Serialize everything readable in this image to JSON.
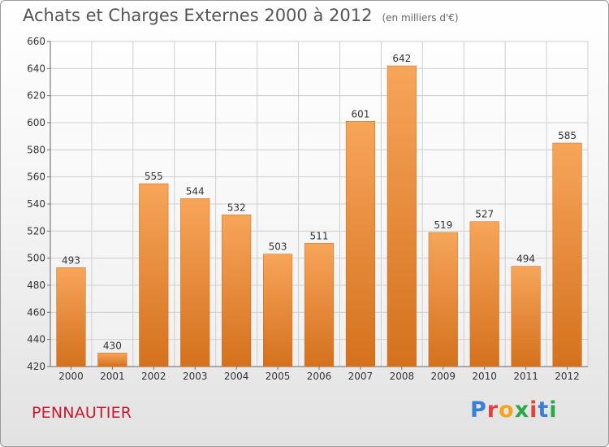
{
  "chart_data": {
    "type": "bar",
    "title": "Achats et Charges Externes 2000 à 2012",
    "unit": "(en milliers d'€)",
    "categories": [
      "2000",
      "2001",
      "2002",
      "2003",
      "2004",
      "2005",
      "2006",
      "2007",
      "2008",
      "2009",
      "2010",
      "2011",
      "2012"
    ],
    "values": [
      493,
      430,
      555,
      544,
      532,
      503,
      511,
      601,
      642,
      519,
      527,
      494,
      585
    ],
    "yticks": [
      "420",
      "440",
      "460",
      "480",
      "500",
      "520",
      "540",
      "560",
      "580",
      "600",
      "620",
      "640",
      "660"
    ],
    "ylim": [
      420,
      660
    ],
    "grid": true,
    "bar_color": "#f0963a"
  },
  "footer": {
    "commune": "PENNAUTIER",
    "logo": {
      "letters": [
        "P",
        "r",
        "o",
        "x",
        "i",
        "t",
        "i"
      ],
      "colors": [
        "#3a7fd5",
        "#e8413c",
        "#f4a51c",
        "#2aa84a",
        "#e8413c",
        "#3a7fd5",
        "#2aa84a"
      ]
    }
  }
}
